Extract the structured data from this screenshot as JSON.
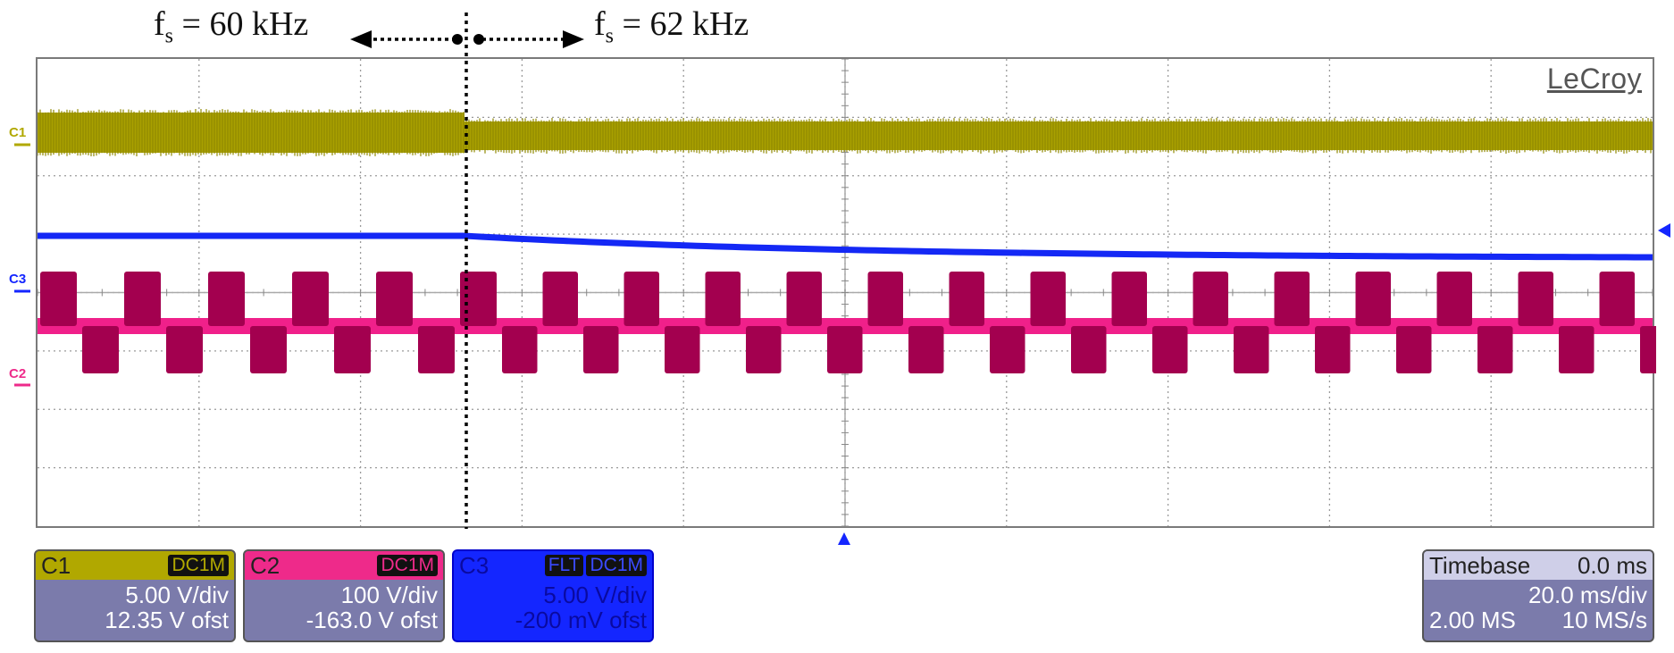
{
  "annotation": {
    "left_label": "60 kHz",
    "right_label": "62 kHz",
    "symbol_base": "f",
    "symbol_sub": "s"
  },
  "brand": "LeCroy",
  "channels": [
    {
      "id": "C1",
      "marker": "C1",
      "coupling": "DC1M",
      "vdiv": "5.00 V/div",
      "offset": "12.35 V ofst",
      "color": "#b1a800"
    },
    {
      "id": "C2",
      "marker": "C2",
      "coupling": "DC1M",
      "vdiv": "100 V/div",
      "offset": "-163.0 V ofst",
      "color": "#ee2a8a"
    },
    {
      "id": "C3",
      "marker": "C3",
      "filter": "FLT",
      "coupling": "DC1M",
      "vdiv": "5.00 V/div",
      "offset": "-200 mV ofst",
      "color": "#1426ff"
    }
  ],
  "timebase": {
    "label": "Timebase",
    "position": "0.0 ms",
    "tdiv": "20.0 ms/div",
    "samples": "2.00 MS",
    "rate": "10 MS/s"
  },
  "colors": {
    "c1_trace": "#a9a000",
    "c2_trace": "#a3004f",
    "c2_edge": "#f0208a",
    "c3_trace": "#1428f5",
    "grid": "#9a9a9a"
  }
}
